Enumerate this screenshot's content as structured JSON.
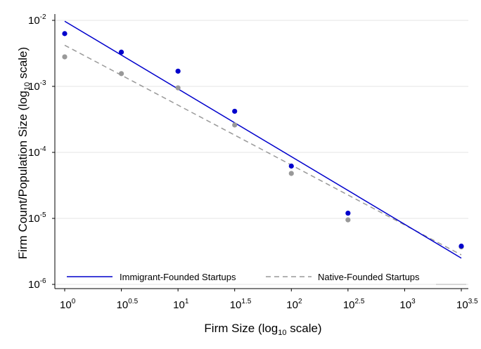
{
  "chart_data": {
    "type": "scatter",
    "xlabel": "Firm Size (log10 scale)",
    "xlabel_parts": {
      "main": "Firm Size (log",
      "sub": "10",
      "tail": " scale)"
    },
    "ylabel": "Firm Count/Population Size (log10 scale)",
    "ylabel_parts": {
      "main": "Firm Count/Population Size (log",
      "sub": "10",
      "tail": " scale)"
    },
    "x_scale": "log10",
    "y_scale": "log10",
    "xlim": [
      1,
      3162.3
    ],
    "ylim": [
      1e-06,
      0.01
    ],
    "x_ticks": [
      {
        "value": 1,
        "base": "10",
        "exp": "0"
      },
      {
        "value": 3.1623,
        "base": "10",
        "exp": "0.5"
      },
      {
        "value": 10,
        "base": "10",
        "exp": "1"
      },
      {
        "value": 31.623,
        "base": "10",
        "exp": "1.5"
      },
      {
        "value": 100,
        "base": "10",
        "exp": "2"
      },
      {
        "value": 316.23,
        "base": "10",
        "exp": "2.5"
      },
      {
        "value": 1000,
        "base": "10",
        "exp": "3"
      },
      {
        "value": 3162.3,
        "base": "10",
        "exp": "3.5"
      }
    ],
    "y_ticks": [
      {
        "value": 0.01,
        "base": "10",
        "exp": "-2"
      },
      {
        "value": 0.001,
        "base": "10",
        "exp": "-3"
      },
      {
        "value": 0.0001,
        "base": "10",
        "exp": "-4"
      },
      {
        "value": 1e-05,
        "base": "10",
        "exp": "-5"
      },
      {
        "value": 1e-06,
        "base": "10",
        "exp": "-6"
      }
    ],
    "grid": "horizontal",
    "legend_position": "bottom",
    "series": [
      {
        "name": "Immigrant-Founded Startups",
        "color": "#0000cc",
        "line_style": "solid",
        "points": [
          {
            "x": 1,
            "y": 0.0063
          },
          {
            "x": 3.1623,
            "y": 0.0033
          },
          {
            "x": 10,
            "y": 0.0017
          },
          {
            "x": 31.623,
            "y": 0.00042
          },
          {
            "x": 100,
            "y": 6.2e-05
          },
          {
            "x": 316.23,
            "y": 1.2e-05
          },
          {
            "x": 3162.3,
            "y": 3.8e-06
          }
        ],
        "fit": [
          {
            "x": 1,
            "y": 0.0097
          },
          {
            "x": 3162.3,
            "y": 2.5e-06
          }
        ]
      },
      {
        "name": "Native-Founded Startups",
        "color": "#999999",
        "line_style": "dashed",
        "points": [
          {
            "x": 1,
            "y": 0.0028
          },
          {
            "x": 3.1623,
            "y": 0.00156
          },
          {
            "x": 10,
            "y": 0.00095
          },
          {
            "x": 31.623,
            "y": 0.00026
          },
          {
            "x": 100,
            "y": 4.8e-05
          },
          {
            "x": 316.23,
            "y": 9.5e-06
          },
          {
            "x": 3162.3,
            "y": 3.7e-06
          }
        ],
        "fit": [
          {
            "x": 1,
            "y": 0.0042
          },
          {
            "x": 3162.3,
            "y": 2.8e-06
          }
        ]
      }
    ]
  }
}
